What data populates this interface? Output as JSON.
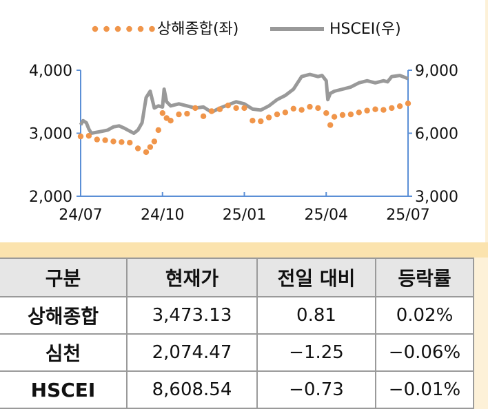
{
  "chart_data": {
    "type": "line",
    "x_ticks": [
      "24/07",
      "24/10",
      "25/01",
      "25/04",
      "25/07"
    ],
    "left_axis": {
      "ticks": [
        "2,000",
        "3,000",
        "4,000"
      ],
      "range": [
        2000,
        4000
      ]
    },
    "right_axis": {
      "ticks": [
        "3,000",
        "6,000",
        "9,000"
      ],
      "range": [
        3000,
        9000
      ]
    },
    "legend": {
      "placement": "top",
      "items": [
        "상해종합(좌)",
        "HSCEI(우)"
      ]
    },
    "grid": false,
    "series": [
      {
        "name": "상해종합(좌)",
        "axis": "left",
        "style": "dotted",
        "color": "#f0954a",
        "x": [
          0,
          0.1,
          0.2,
          0.3,
          0.4,
          0.5,
          0.6,
          0.7,
          0.8,
          0.85,
          0.9,
          0.95,
          1.0,
          1.05,
          1.1,
          1.2,
          1.3,
          1.4,
          1.5,
          1.6,
          1.7,
          1.8,
          1.9,
          2.0,
          2.1,
          2.2,
          2.3,
          2.4,
          2.5,
          2.6,
          2.7,
          2.8,
          2.9,
          3.0,
          3.05,
          3.1,
          3.2,
          3.3,
          3.4,
          3.5,
          3.6,
          3.7,
          3.8,
          3.9,
          4.0
        ],
        "y": [
          2950,
          2960,
          2900,
          2890,
          2870,
          2860,
          2850,
          2760,
          2700,
          2780,
          2870,
          3050,
          3320,
          3240,
          3200,
          3300,
          3310,
          3400,
          3270,
          3350,
          3380,
          3440,
          3400,
          3400,
          3200,
          3190,
          3250,
          3300,
          3330,
          3390,
          3370,
          3420,
          3400,
          3320,
          3130,
          3260,
          3290,
          3300,
          3330,
          3360,
          3380,
          3370,
          3400,
          3430,
          3473
        ]
      },
      {
        "name": "HSCEI(우)",
        "axis": "right",
        "style": "solid",
        "color": "#999999",
        "x": [
          0,
          0.03,
          0.07,
          0.1,
          0.13,
          0.2,
          0.27,
          0.33,
          0.4,
          0.47,
          0.53,
          0.6,
          0.65,
          0.7,
          0.75,
          0.8,
          0.85,
          0.9,
          0.95,
          1.0,
          1.02,
          1.05,
          1.1,
          1.2,
          1.3,
          1.4,
          1.5,
          1.6,
          1.7,
          1.8,
          1.9,
          2.0,
          2.1,
          2.2,
          2.3,
          2.4,
          2.5,
          2.6,
          2.7,
          2.8,
          2.9,
          2.95,
          3.0,
          3.02,
          3.05,
          3.1,
          3.2,
          3.3,
          3.4,
          3.5,
          3.6,
          3.7,
          3.75,
          3.8,
          3.9,
          4.0
        ],
        "y": [
          6400,
          6600,
          6500,
          6200,
          6000,
          6050,
          6100,
          6150,
          6300,
          6350,
          6250,
          6100,
          6000,
          6150,
          6500,
          7700,
          8000,
          7200,
          7300,
          7250,
          8100,
          7500,
          7300,
          7400,
          7300,
          7200,
          7250,
          7000,
          7200,
          7350,
          7500,
          7400,
          7150,
          7100,
          7300,
          7600,
          7800,
          8100,
          8700,
          8800,
          8700,
          8750,
          8500,
          7600,
          7900,
          8000,
          8100,
          8200,
          8400,
          8500,
          8400,
          8500,
          8450,
          8700,
          8750,
          8600
        ]
      }
    ]
  },
  "table": {
    "headers": [
      "구분",
      "현재가",
      "전일 대비",
      "등락률"
    ],
    "rows": [
      {
        "name": "상해종합",
        "price": "3,473.13",
        "change": "0.81",
        "rate": "0.02%"
      },
      {
        "name": "심천",
        "price": "2,074.47",
        "change": "−1.25",
        "rate": "−0.06%"
      },
      {
        "name": "HSCEI",
        "price": "8,608.54",
        "change": "−0.73",
        "rate": "−0.01%"
      }
    ]
  }
}
